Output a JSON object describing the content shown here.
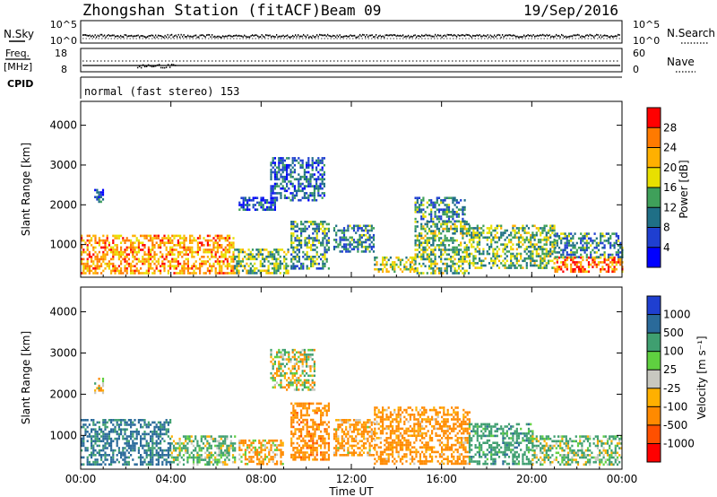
{
  "header": {
    "station": "Zhongshan Station (fitACF)",
    "beam": "Beam 09",
    "date": "19/Sep/2016"
  },
  "nsky_panel": {
    "left_label": "N.Sky",
    "right_label": "N.Search",
    "left_ticks": [
      "10^5",
      "10^0"
    ],
    "right_ticks": [
      "10^5",
      "10^0"
    ]
  },
  "freq_panel": {
    "left_label_1": "Freq.",
    "left_label_2": "[MHz]",
    "right_label": "Nave",
    "left_ticks": [
      "18",
      "8"
    ],
    "right_ticks": [
      "60",
      "0"
    ]
  },
  "cpid": {
    "label": "CPID",
    "text": "normal (fast stereo) 153"
  },
  "power_panel": {
    "ylabel": "Slant Range [km]",
    "colorbar_label": "Power [dB]",
    "colorbar_ticks": [
      "28",
      "24",
      "20",
      "16",
      "12",
      "8",
      "4"
    ],
    "colorbar_colors": [
      "#ff0000",
      "#ff7a00",
      "#ffb000",
      "#e8e000",
      "#3fa05a",
      "#1f6f86",
      "#1f3fd0",
      "#0000ff"
    ]
  },
  "velocity_panel": {
    "ylabel": "Slant Range [km]",
    "colorbar_label": "Velocity [m s⁻¹]",
    "colorbar_ticks": [
      "1000",
      "500",
      "100",
      "25",
      "-25",
      "-100",
      "-500",
      "-1000"
    ],
    "colorbar_colors": [
      "#1f3fd0",
      "#2a6a9a",
      "#3f9f70",
      "#5fd040",
      "#c8c8c0",
      "#ffb000",
      "#ff8a00",
      "#ff5000",
      "#ff0000"
    ]
  },
  "xaxis": {
    "ticks": [
      "00:00",
      "04:00",
      "08:00",
      "12:00",
      "16:00",
      "20:00",
      "00:00"
    ],
    "title": "Time UT"
  },
  "chart_data": {
    "type": "heatmap",
    "x_range_hours": [
      0,
      24
    ],
    "y_range_km": [
      180,
      4600
    ],
    "y_ticks": [
      1000,
      2000,
      3000,
      4000
    ],
    "power_scale_db": [
      0,
      30
    ],
    "velocity_scale_ms": [
      -1000,
      1000
    ],
    "power_echo_regions": [
      {
        "t0": 0.0,
        "t1": 6.8,
        "r0": 300,
        "r1": 1250,
        "value": 22
      },
      {
        "t0": 6.8,
        "t1": 9.2,
        "r0": 300,
        "r1": 900,
        "value": 14
      },
      {
        "t0": 0.6,
        "t1": 1.0,
        "r0": 2050,
        "r1": 2400,
        "value": 6
      },
      {
        "t0": 7.0,
        "t1": 8.6,
        "r0": 1900,
        "r1": 2200,
        "value": 6
      },
      {
        "t0": 8.4,
        "t1": 10.8,
        "r0": 2100,
        "r1": 3200,
        "value": 8
      },
      {
        "t0": 9.3,
        "t1": 11.0,
        "r0": 400,
        "r1": 1600,
        "value": 12
      },
      {
        "t0": 11.2,
        "t1": 13.0,
        "r0": 800,
        "r1": 1500,
        "value": 10
      },
      {
        "t0": 13.0,
        "t1": 14.8,
        "r0": 300,
        "r1": 700,
        "value": 16
      },
      {
        "t0": 14.8,
        "t1": 17.2,
        "r0": 300,
        "r1": 1600,
        "value": 14
      },
      {
        "t0": 14.8,
        "t1": 17.0,
        "r0": 1600,
        "r1": 2200,
        "value": 10
      },
      {
        "t0": 17.2,
        "t1": 21.0,
        "r0": 400,
        "r1": 1500,
        "value": 14
      },
      {
        "t0": 21.0,
        "t1": 24.0,
        "r0": 300,
        "r1": 700,
        "value": 24
      },
      {
        "t0": 21.0,
        "t1": 24.0,
        "r0": 700,
        "r1": 1300,
        "value": 10
      }
    ],
    "velocity_echo_regions": [
      {
        "t0": 0.0,
        "t1": 4.0,
        "r0": 300,
        "r1": 1400,
        "value": 600
      },
      {
        "t0": 4.0,
        "t1": 6.8,
        "r0": 300,
        "r1": 1000,
        "value": 150
      },
      {
        "t0": 0.6,
        "t1": 1.0,
        "r0": 2050,
        "r1": 2400,
        "value": 0
      },
      {
        "t0": 7.0,
        "t1": 9.0,
        "r0": 300,
        "r1": 900,
        "value": -150
      },
      {
        "t0": 8.4,
        "t1": 10.4,
        "r0": 2100,
        "r1": 3100,
        "value": 0
      },
      {
        "t0": 9.3,
        "t1": 11.0,
        "r0": 400,
        "r1": 1800,
        "value": -300
      },
      {
        "t0": 11.2,
        "t1": 13.0,
        "r0": 500,
        "r1": 1400,
        "value": -200
      },
      {
        "t0": 13.0,
        "t1": 17.2,
        "r0": 300,
        "r1": 1700,
        "value": -250
      },
      {
        "t0": 17.2,
        "t1": 20.0,
        "r0": 300,
        "r1": 1300,
        "value": 300
      },
      {
        "t0": 20.0,
        "t1": 24.0,
        "r0": 300,
        "r1": 1000,
        "value": 150
      }
    ],
    "nsky_series": {
      "name": "N.Sky",
      "level": 0.35
    },
    "freq_series": {
      "name": "Freq.",
      "level_mhz": 11.5
    },
    "nave_series": {
      "name": "Nave",
      "level": 35
    }
  }
}
